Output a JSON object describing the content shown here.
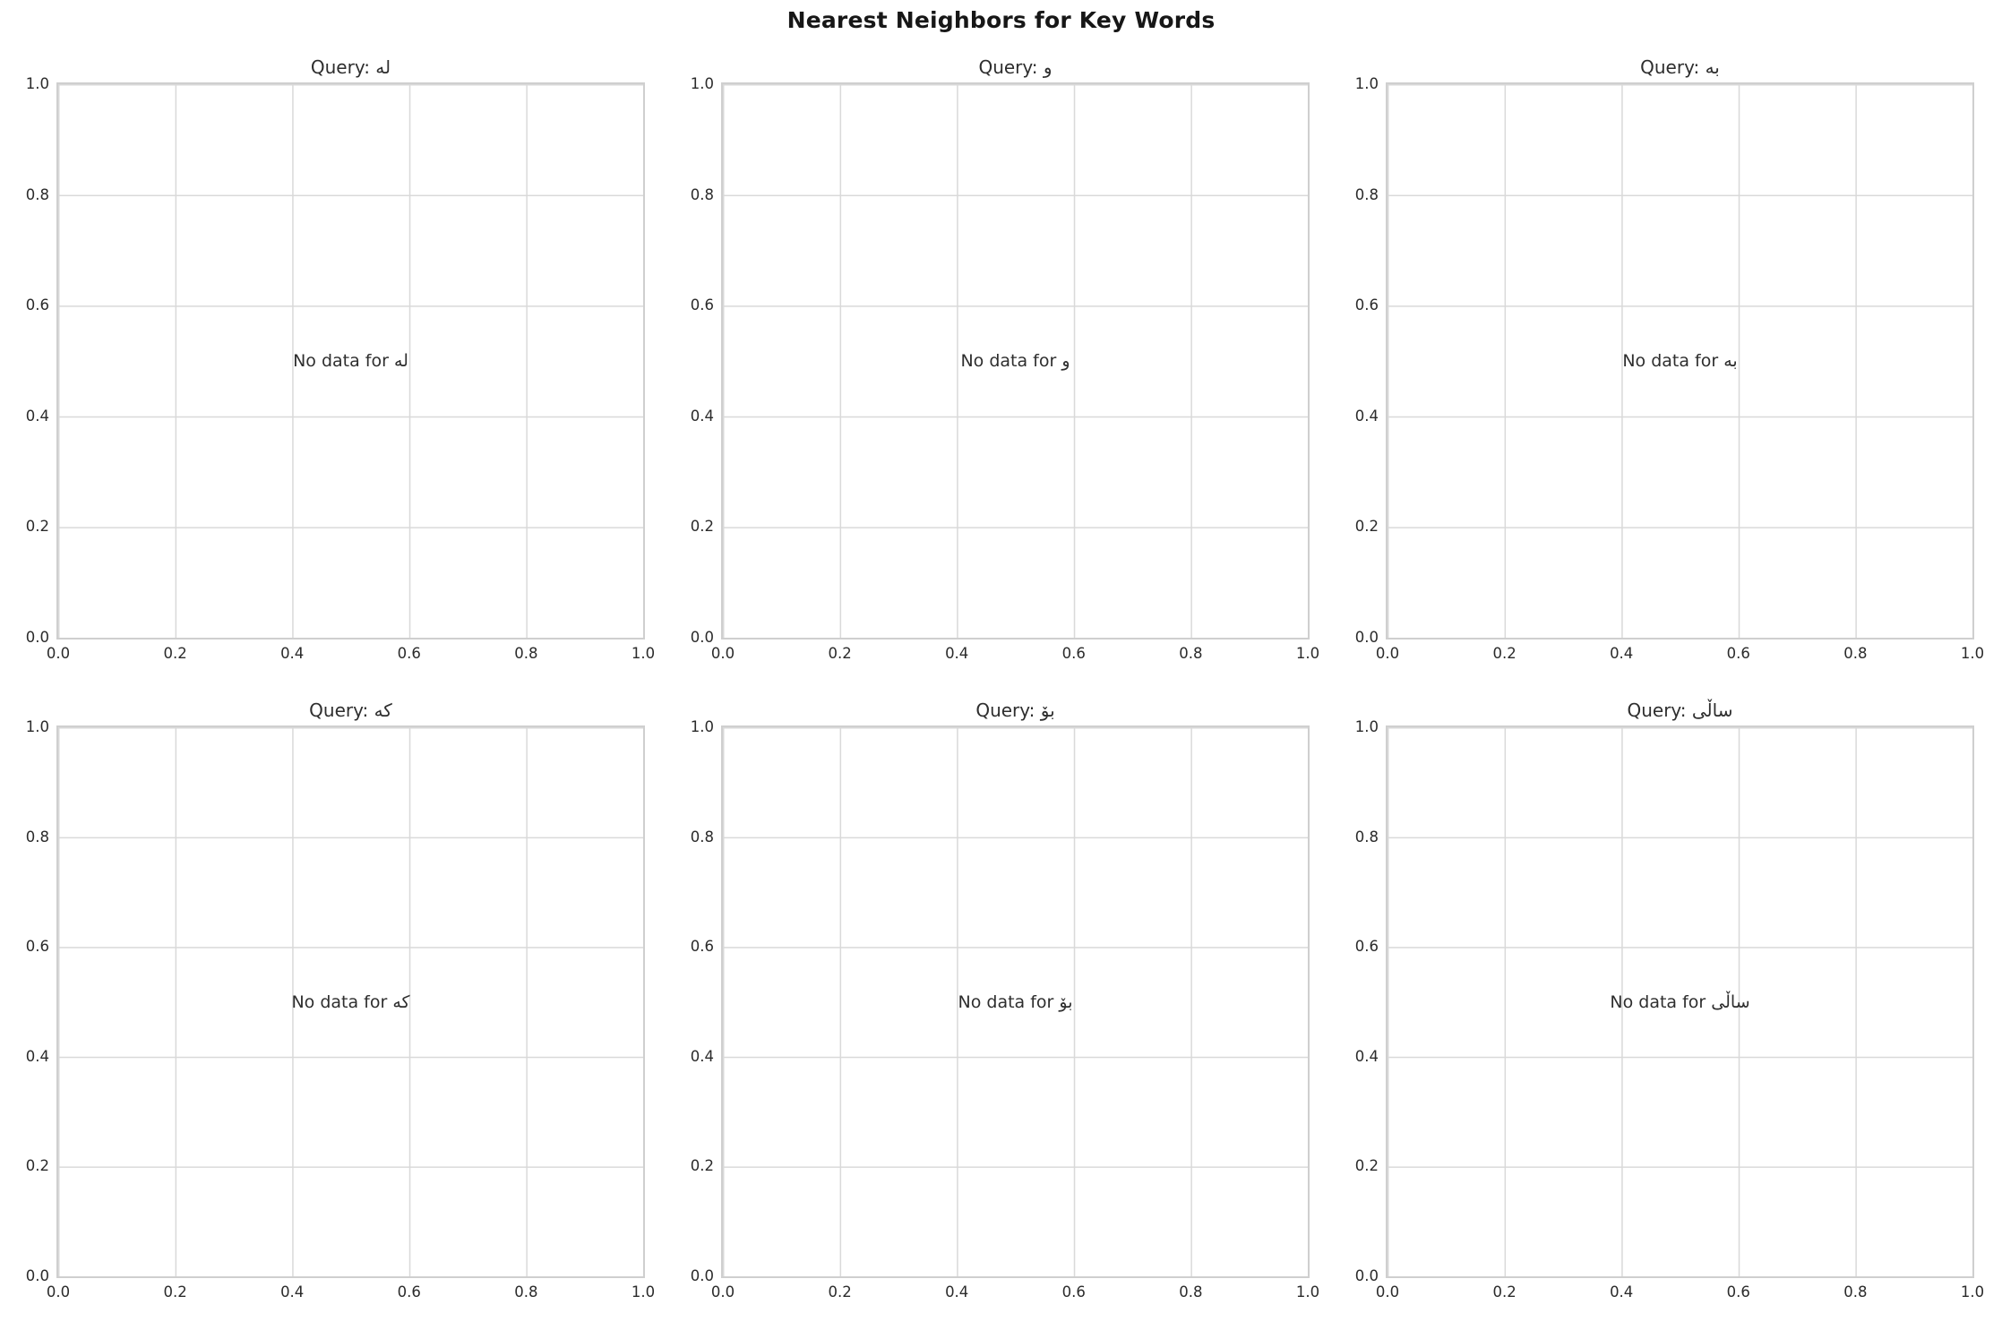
{
  "figure_title": "Nearest Neighbors for Key Words",
  "ticks": [
    "0.0",
    "0.2",
    "0.4",
    "0.6",
    "0.8",
    "1.0"
  ],
  "subplots": [
    {
      "query_word": "لە",
      "title": "Query: لە",
      "no_data": "No data for لە"
    },
    {
      "query_word": "و",
      "title": "Query: و",
      "no_data": "No data for و"
    },
    {
      "query_word": "بە",
      "title": "Query: بە",
      "no_data": "No data for بە"
    },
    {
      "query_word": "کە",
      "title": "Query: کە",
      "no_data": "No data for کە"
    },
    {
      "query_word": "بۆ",
      "title": "Query: بۆ",
      "no_data": "No data for بۆ"
    },
    {
      "query_word": "ساڵی",
      "title": "Query: ساڵی",
      "no_data": "No data for ساڵی"
    }
  ],
  "colors": {
    "background": "#ffffff",
    "gridline": "#d9d9d9",
    "spine": "#cfcfcf",
    "tick_text": "#2b2b2b",
    "title_text": "#171717"
  },
  "chart_data": [
    {
      "type": "scatter",
      "title": "Query: لە",
      "annotation": "No data for لە",
      "series": [],
      "xlabel": "",
      "ylabel": "",
      "xlim": [
        0.0,
        1.0
      ],
      "ylim": [
        0.0,
        1.0
      ],
      "xticks": [
        0.0,
        0.2,
        0.4,
        0.6,
        0.8,
        1.0
      ],
      "yticks": [
        0.0,
        0.2,
        0.4,
        0.6,
        0.8,
        1.0
      ],
      "grid": true,
      "legend": false
    },
    {
      "type": "scatter",
      "title": "Query: و",
      "annotation": "No data for و",
      "series": [],
      "xlabel": "",
      "ylabel": "",
      "xlim": [
        0.0,
        1.0
      ],
      "ylim": [
        0.0,
        1.0
      ],
      "xticks": [
        0.0,
        0.2,
        0.4,
        0.6,
        0.8,
        1.0
      ],
      "yticks": [
        0.0,
        0.2,
        0.4,
        0.6,
        0.8,
        1.0
      ],
      "grid": true,
      "legend": false
    },
    {
      "type": "scatter",
      "title": "Query: بە",
      "annotation": "No data for بە",
      "series": [],
      "xlabel": "",
      "ylabel": "",
      "xlim": [
        0.0,
        1.0
      ],
      "ylim": [
        0.0,
        1.0
      ],
      "xticks": [
        0.0,
        0.2,
        0.4,
        0.6,
        0.8,
        1.0
      ],
      "yticks": [
        0.0,
        0.2,
        0.4,
        0.6,
        0.8,
        1.0
      ],
      "grid": true,
      "legend": false
    },
    {
      "type": "scatter",
      "title": "Query: کە",
      "annotation": "No data for کە",
      "series": [],
      "xlabel": "",
      "ylabel": "",
      "xlim": [
        0.0,
        1.0
      ],
      "ylim": [
        0.0,
        1.0
      ],
      "xticks": [
        0.0,
        0.2,
        0.4,
        0.6,
        0.8,
        1.0
      ],
      "yticks": [
        0.0,
        0.2,
        0.4,
        0.6,
        0.8,
        1.0
      ],
      "grid": true,
      "legend": false
    },
    {
      "type": "scatter",
      "title": "Query: بۆ",
      "annotation": "No data for بۆ",
      "series": [],
      "xlabel": "",
      "ylabel": "",
      "xlim": [
        0.0,
        1.0
      ],
      "ylim": [
        0.0,
        1.0
      ],
      "xticks": [
        0.0,
        0.2,
        0.4,
        0.6,
        0.8,
        1.0
      ],
      "yticks": [
        0.0,
        0.2,
        0.4,
        0.6,
        0.8,
        1.0
      ],
      "grid": true,
      "legend": false
    },
    {
      "type": "scatter",
      "title": "Query: ساڵی",
      "annotation": "No data for ساڵی",
      "series": [],
      "xlabel": "",
      "ylabel": "",
      "xlim": [
        0.0,
        1.0
      ],
      "ylim": [
        0.0,
        1.0
      ],
      "xticks": [
        0.0,
        0.2,
        0.4,
        0.6,
        0.8,
        1.0
      ],
      "yticks": [
        0.0,
        0.2,
        0.4,
        0.6,
        0.8,
        1.0
      ],
      "grid": true,
      "legend": false
    }
  ]
}
